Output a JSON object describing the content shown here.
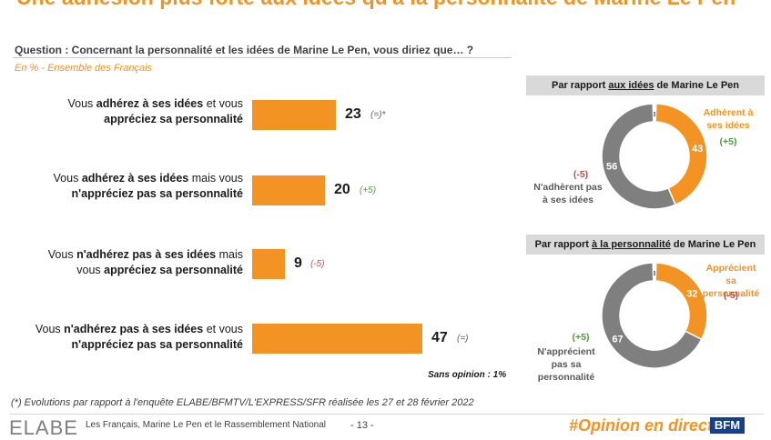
{
  "header": {
    "title": "Une adhésion plus forte aux idées qu'à la personnalité de Marine Le Pen",
    "question": "Question : Concernant la personnalité et les idées de Marine Le Pen, vous diriez que… ?",
    "subtitle": "En % - Ensemble des Français"
  },
  "chart_data": [
    {
      "type": "bar",
      "orientation": "horizontal",
      "unit": "%",
      "categories": [
        "Vous adhérez à ses idées et vous appréciez sa personnalité",
        "Vous adhérez à ses idées mais vous n'appréciez pas sa personnalité",
        "Vous n'adhérez pas à ses idées mais vous appréciez sa personnalité",
        "Vous n'adhérez pas à ses idées et vous n'appréciez pas sa personnalité"
      ],
      "values": [
        23,
        20,
        9,
        47
      ],
      "evolutions": [
        "(=)*",
        "(+5)",
        "(-5)",
        "(=)"
      ],
      "note": "Sans opinion : 1%"
    },
    {
      "type": "pie",
      "title": "Par rapport aux idées de Marine Le Pen",
      "slices": [
        {
          "label": "Adhèrent à ses idées",
          "value": 43,
          "evolution": "(+5)",
          "color": "#f39323"
        },
        {
          "label": "N'adhèrent pas à ses idées",
          "value": 56,
          "evolution": "(-5)",
          "color": "#7f7f7f"
        },
        {
          "label": "",
          "value": 1,
          "color": "#ffffff"
        }
      ]
    },
    {
      "type": "pie",
      "title": "Par rapport à la personnalité de Marine Le Pen",
      "slices": [
        {
          "label": "Apprécient sa personnalité",
          "value": 32,
          "evolution": "(-5)",
          "color": "#f39323"
        },
        {
          "label": "N'apprécient pas sa personnalité",
          "value": 67,
          "evolution": "(+5)",
          "color": "#7f7f7f"
        },
        {
          "label": "",
          "value": 1,
          "color": "#ffffff"
        }
      ]
    }
  ],
  "bars": {
    "labels": [
      {
        "pre": "Vous ",
        "b1": "adhérez à ses idées",
        "mid": " et vous",
        "b2": "appréciez sa personnalité",
        "post": ""
      },
      {
        "pre": "Vous ",
        "b1": "adhérez à ses idées",
        "mid": " mais vous",
        "b2": "n'appréciez pas sa personnalité",
        "post": ""
      },
      {
        "pre": "Vous ",
        "b1": "n'adhérez pas à ses idées",
        "mid": " mais",
        "b2": "appréciez sa personnalité",
        "post": "vous "
      },
      {
        "pre": "Vous ",
        "b1": "n'adhérez pas à ses idées",
        "mid": " et vous",
        "b2": "n'appréciez pas sa personnalité",
        "post": ""
      }
    ]
  },
  "donut1": {
    "head_pre": "Par rapport ",
    "head_u": "aux idées",
    "head_post": " de Marine Le Pen",
    "orange_label": "Adhèrent à ses idées",
    "orange_evo": "(+5)",
    "grey_label": "N'adhèrent pas à ses idées",
    "grey_evo": "(-5)"
  },
  "donut2": {
    "head_pre": "Par rapport ",
    "head_u": "à la personnalité",
    "head_post": " de Marine Le Pen",
    "orange_label": "Apprécient sa personnalité",
    "orange_evo": "(-5)",
    "grey_label": "N'apprécient pas sa personnalité",
    "grey_evo": "(+5)"
  },
  "footer": {
    "footnote": "(*) Evolutions par rapport à l'enquête ELABE/BFMTV/L'EXPRESS/SFR réalisée les 27 et 28 février 2022",
    "logo": "ELABE",
    "text": "Les Français, Marine Le Pen et le Rassemblement National",
    "page": "- 13 -",
    "hashtag": "#Opinion en direct",
    "brand": "BFM"
  },
  "colors": {
    "accent": "#f39323",
    "grey": "#7f7f7f"
  }
}
